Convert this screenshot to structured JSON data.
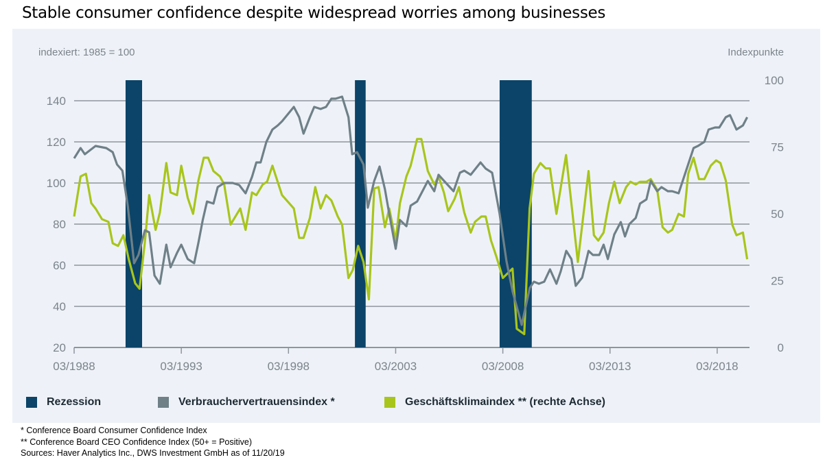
{
  "title": "Stable consumer confidence despite widespread worries among businesses",
  "notes": [
    "* Conference Board Consumer Confidence Index",
    "** Conference Board CEO Confidence Index (50+ = Positive)",
    "Sources: Haver Analytics Inc., DWS Investment GmbH as of 11/20/19"
  ],
  "chart_data": {
    "type": "line",
    "left_axis_label": "indexiert: 1985 = 100",
    "right_axis_label": "Indexpunkte",
    "left_ylim": [
      20,
      150
    ],
    "right_ylim": [
      0,
      100
    ],
    "left_ticks": [
      "20",
      "40",
      "60",
      "80",
      "100",
      "120",
      "140"
    ],
    "right_ticks": [
      "0",
      "25",
      "50",
      "75",
      "100"
    ],
    "x_ticks": [
      "03/1988",
      "03/1993",
      "03/1998",
      "03/2003",
      "03/2008",
      "03/2013",
      "03/2018"
    ],
    "x_tick_years": [
      1988,
      1993,
      1998,
      2003,
      2008,
      2013,
      2018
    ],
    "xlim": [
      1988,
      2019.5
    ],
    "grid": true,
    "legend_position": "bottom",
    "colors": {
      "recession": "#0b4468",
      "consumer": "#6f8087",
      "business": "#a8c51b"
    },
    "legend": [
      "Rezession",
      "Verbrauchervertrauensindex *",
      "Geschäftsklimaindex ** (rechte Achse)"
    ],
    "recessions": [
      [
        1990.4,
        1991.17
      ],
      [
        2001.1,
        2001.6
      ],
      [
        2007.85,
        2009.35
      ]
    ],
    "series": [
      {
        "name": "Verbrauchervertrauensindex *",
        "axis": "left",
        "points": [
          [
            1988.0,
            112
          ],
          [
            1988.3,
            117
          ],
          [
            1988.5,
            114
          ],
          [
            1989.0,
            118
          ],
          [
            1989.5,
            117
          ],
          [
            1989.8,
            115
          ],
          [
            1990.0,
            109
          ],
          [
            1990.25,
            106
          ],
          [
            1990.5,
            89
          ],
          [
            1990.8,
            61
          ],
          [
            1991.0,
            65
          ],
          [
            1991.3,
            77
          ],
          [
            1991.5,
            76
          ],
          [
            1991.75,
            55
          ],
          [
            1992.0,
            51
          ],
          [
            1992.3,
            70
          ],
          [
            1992.5,
            59
          ],
          [
            1992.8,
            66
          ],
          [
            1993.0,
            70
          ],
          [
            1993.3,
            63
          ],
          [
            1993.6,
            61
          ],
          [
            1993.8,
            71
          ],
          [
            1994.0,
            82
          ],
          [
            1994.2,
            91
          ],
          [
            1994.5,
            90
          ],
          [
            1994.7,
            98
          ],
          [
            1995.0,
            100
          ],
          [
            1995.4,
            100
          ],
          [
            1995.7,
            99
          ],
          [
            1996.0,
            95
          ],
          [
            1996.3,
            103
          ],
          [
            1996.5,
            110
          ],
          [
            1996.7,
            110
          ],
          [
            1996.97,
            120
          ],
          [
            1997.25,
            126
          ],
          [
            1997.5,
            128
          ],
          [
            1997.7,
            130
          ],
          [
            1998.25,
            137
          ],
          [
            1998.5,
            132
          ],
          [
            1998.7,
            124
          ],
          [
            1999.0,
            132
          ],
          [
            1999.2,
            137
          ],
          [
            1999.5,
            136
          ],
          [
            1999.75,
            137
          ],
          [
            2000.0,
            141
          ],
          [
            2000.2,
            141
          ],
          [
            2000.5,
            142
          ],
          [
            2000.8,
            132
          ],
          [
            2000.97,
            114
          ],
          [
            2001.2,
            115
          ],
          [
            2001.5,
            109
          ],
          [
            2001.7,
            88
          ],
          [
            2002.0,
            101
          ],
          [
            2002.25,
            108
          ],
          [
            2002.5,
            97
          ],
          [
            2002.7,
            85
          ],
          [
            2003.0,
            68
          ],
          [
            2003.2,
            82
          ],
          [
            2003.5,
            79
          ],
          [
            2003.7,
            89
          ],
          [
            2004.0,
            91
          ],
          [
            2004.5,
            101
          ],
          [
            2004.8,
            96
          ],
          [
            2005.0,
            104
          ],
          [
            2005.26,
            101
          ],
          [
            2005.7,
            96
          ],
          [
            2006.0,
            105
          ],
          [
            2006.2,
            106
          ],
          [
            2006.5,
            104
          ],
          [
            2006.96,
            110
          ],
          [
            2007.2,
            107
          ],
          [
            2007.5,
            105
          ],
          [
            2007.85,
            85
          ],
          [
            2008.17,
            62
          ],
          [
            2008.46,
            47
          ],
          [
            2008.88,
            31
          ],
          [
            2009.26,
            49
          ],
          [
            2009.45,
            52
          ],
          [
            2009.68,
            51
          ],
          [
            2009.93,
            52
          ],
          [
            2010.2,
            58
          ],
          [
            2010.5,
            51
          ],
          [
            2010.7,
            57
          ],
          [
            2010.96,
            67
          ],
          [
            2011.2,
            63
          ],
          [
            2011.4,
            50
          ],
          [
            2011.7,
            54
          ],
          [
            2012.0,
            67
          ],
          [
            2012.2,
            65
          ],
          [
            2012.5,
            65
          ],
          [
            2012.7,
            70
          ],
          [
            2012.9,
            63
          ],
          [
            2013.2,
            75
          ],
          [
            2013.5,
            81
          ],
          [
            2013.7,
            74
          ],
          [
            2013.9,
            80
          ],
          [
            2014.2,
            83
          ],
          [
            2014.4,
            90
          ],
          [
            2014.7,
            92
          ],
          [
            2014.9,
            101
          ],
          [
            2015.2,
            96
          ],
          [
            2015.4,
            98
          ],
          [
            2015.7,
            96
          ],
          [
            2015.9,
            96
          ],
          [
            2016.2,
            95
          ],
          [
            2016.9,
            117
          ],
          [
            2017.1,
            118
          ],
          [
            2017.4,
            120
          ],
          [
            2017.6,
            126
          ],
          [
            2017.9,
            127
          ],
          [
            2018.1,
            127
          ],
          [
            2018.4,
            132
          ],
          [
            2018.6,
            133
          ],
          [
            2018.9,
            126
          ],
          [
            2019.2,
            128
          ],
          [
            2019.4,
            132
          ]
        ]
      },
      {
        "name": "Geschäftsklimaindex ** (rechte Achse)",
        "axis": "right",
        "points": [
          [
            1988.0,
            49
          ],
          [
            1988.3,
            64
          ],
          [
            1988.55,
            65
          ],
          [
            1988.8,
            54
          ],
          [
            1989.0,
            52
          ],
          [
            1989.3,
            48
          ],
          [
            1989.6,
            47
          ],
          [
            1989.8,
            39
          ],
          [
            1990.05,
            38
          ],
          [
            1990.3,
            42
          ],
          [
            1990.55,
            33
          ],
          [
            1990.85,
            24
          ],
          [
            1991.05,
            22
          ],
          [
            1991.3,
            39.5
          ],
          [
            1991.5,
            57
          ],
          [
            1991.8,
            44
          ],
          [
            1992.0,
            50.5
          ],
          [
            1992.3,
            69
          ],
          [
            1992.5,
            58
          ],
          [
            1992.8,
            57
          ],
          [
            1993.0,
            68
          ],
          [
            1993.3,
            56
          ],
          [
            1993.55,
            50
          ],
          [
            1993.8,
            62.5
          ],
          [
            1994.05,
            71
          ],
          [
            1994.25,
            71
          ],
          [
            1994.5,
            66
          ],
          [
            1994.8,
            64
          ],
          [
            1995.0,
            61
          ],
          [
            1995.3,
            46
          ],
          [
            1995.75,
            52
          ],
          [
            1996.0,
            44
          ],
          [
            1996.3,
            58
          ],
          [
            1996.5,
            57
          ],
          [
            1996.8,
            61
          ],
          [
            1997.0,
            62
          ],
          [
            1997.25,
            68
          ],
          [
            1997.7,
            57
          ],
          [
            1998.25,
            52
          ],
          [
            1998.5,
            41
          ],
          [
            1998.7,
            41
          ],
          [
            1999.0,
            48.5
          ],
          [
            1999.25,
            60
          ],
          [
            1999.5,
            52
          ],
          [
            1999.75,
            57
          ],
          [
            2000.0,
            55
          ],
          [
            2000.3,
            49
          ],
          [
            2000.5,
            46
          ],
          [
            2000.8,
            26
          ],
          [
            2001.0,
            29
          ],
          [
            2001.25,
            38
          ],
          [
            2001.5,
            32
          ],
          [
            2001.75,
            18
          ],
          [
            2002.0,
            59.5
          ],
          [
            2002.2,
            60
          ],
          [
            2002.5,
            45
          ],
          [
            2002.7,
            52
          ],
          [
            2003.0,
            40
          ],
          [
            2003.2,
            54
          ],
          [
            2003.5,
            64
          ],
          [
            2003.7,
            68
          ],
          [
            2004.0,
            78
          ],
          [
            2004.2,
            78
          ],
          [
            2004.5,
            66
          ],
          [
            2004.8,
            61
          ],
          [
            2005.0,
            64
          ],
          [
            2005.25,
            58
          ],
          [
            2005.45,
            51
          ],
          [
            2005.75,
            55.6
          ],
          [
            2005.95,
            60
          ],
          [
            2006.2,
            50.5
          ],
          [
            2006.5,
            43
          ],
          [
            2006.7,
            47
          ],
          [
            2007.0,
            49
          ],
          [
            2007.2,
            49
          ],
          [
            2007.45,
            40
          ],
          [
            2007.7,
            34
          ],
          [
            2008.0,
            26
          ],
          [
            2008.45,
            29.5
          ],
          [
            2008.65,
            7
          ],
          [
            2009.0,
            5
          ],
          [
            2009.25,
            52
          ],
          [
            2009.45,
            65
          ],
          [
            2009.75,
            69
          ],
          [
            2010.0,
            67
          ],
          [
            2010.2,
            67
          ],
          [
            2010.5,
            50
          ],
          [
            2010.95,
            72
          ],
          [
            2011.5,
            32
          ],
          [
            2012.0,
            66
          ],
          [
            2012.25,
            42
          ],
          [
            2012.45,
            40
          ],
          [
            2012.7,
            43
          ],
          [
            2012.95,
            54
          ],
          [
            2013.2,
            62
          ],
          [
            2013.45,
            54
          ],
          [
            2013.75,
            60
          ],
          [
            2013.95,
            62
          ],
          [
            2014.2,
            61
          ],
          [
            2014.4,
            62
          ],
          [
            2014.7,
            62
          ],
          [
            2014.9,
            63
          ],
          [
            2015.2,
            59
          ],
          [
            2015.45,
            45
          ],
          [
            2015.7,
            43
          ],
          [
            2015.9,
            44
          ],
          [
            2016.2,
            50
          ],
          [
            2016.45,
            49
          ],
          [
            2016.65,
            65
          ],
          [
            2016.9,
            71
          ],
          [
            2017.15,
            63
          ],
          [
            2017.4,
            63
          ],
          [
            2017.7,
            68
          ],
          [
            2017.95,
            70
          ],
          [
            2018.15,
            69
          ],
          [
            2018.4,
            62.5
          ],
          [
            2018.7,
            46
          ],
          [
            2018.9,
            42
          ],
          [
            2019.2,
            43
          ],
          [
            2019.4,
            33
          ]
        ]
      }
    ]
  }
}
